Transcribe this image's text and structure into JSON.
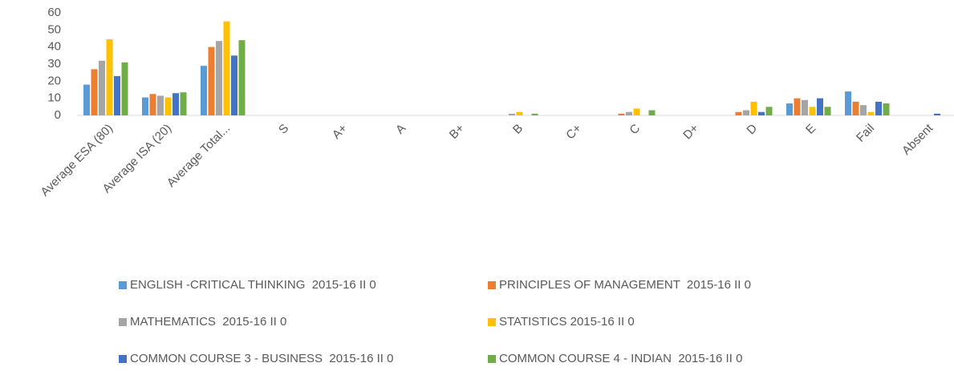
{
  "chart_data": {
    "type": "bar",
    "categories": [
      "Average ESA (80)",
      "Average ISA (20)",
      "Average Total...",
      "S",
      "A+",
      "A",
      "B+",
      "B",
      "C+",
      "C",
      "D+",
      "D",
      "E",
      "Fail",
      "Absent"
    ],
    "series": [
      {
        "name": "ENGLISH -CRITICAL THINKING  2015-16 II 0",
        "color": "#5b9bd5",
        "values": [
          18,
          10.5,
          29,
          0,
          0,
          0,
          0,
          0,
          0,
          0,
          0,
          0,
          7,
          14,
          0
        ]
      },
      {
        "name": "PRINCIPLES OF MANAGEMENT  2015-16 II 0",
        "color": "#ed7d31",
        "values": [
          27,
          12.5,
          40,
          0,
          0,
          0,
          0,
          0,
          0,
          1,
          0,
          2,
          10,
          8,
          0
        ]
      },
      {
        "name": "MATHEMATICS  2015-16 II 0",
        "color": "#a5a5a5",
        "values": [
          32,
          11.5,
          43.5,
          0,
          0,
          0,
          0,
          1,
          0,
          2,
          0,
          3,
          9,
          6,
          0
        ]
      },
      {
        "name": "STATISTICS 2015-16 II 0",
        "color": "#ffc000",
        "values": [
          44.5,
          10.5,
          55,
          0,
          0,
          0,
          0,
          2,
          0,
          4,
          0,
          8,
          5,
          2,
          0
        ]
      },
      {
        "name": "COMMON COURSE 3 - BUSINESS  2015-16 II 0",
        "color": "#4472c4",
        "values": [
          23,
          13,
          35,
          0,
          0,
          0,
          0,
          0,
          0,
          0,
          0,
          2,
          10,
          8,
          1
        ]
      },
      {
        "name": "COMMON COURSE 4 - INDIAN  2015-16 II 0",
        "color": "#70ad47",
        "values": [
          31,
          13.5,
          44,
          0,
          0,
          0,
          0,
          1,
          0,
          3,
          0,
          5,
          5,
          7,
          0
        ]
      }
    ],
    "ylim": [
      0,
      60
    ],
    "yticks": [
      0,
      10,
      20,
      30,
      40,
      50,
      60
    ],
    "grid": false,
    "legend": "bottom"
  }
}
